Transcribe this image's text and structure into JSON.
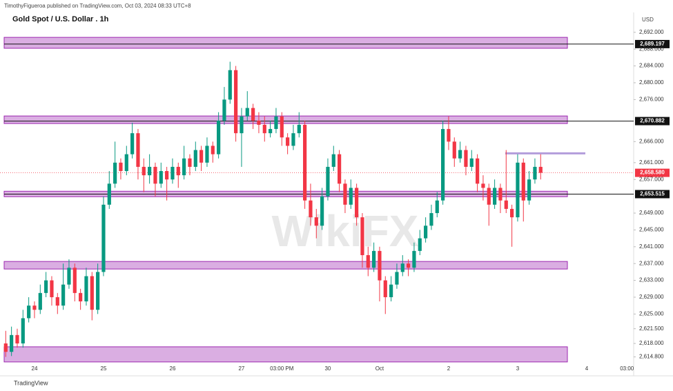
{
  "header": "TimothyFigueroa published on TradingView.com, Oct 03, 2024 08:33 UTC+8",
  "footer": "TradingView",
  "watermark": "WikiFX",
  "chart_data": {
    "type": "candlestick",
    "title": "Gold Spot / U.S. Dollar . 1h",
    "currency": "USD",
    "up_color": "#089981",
    "down_color": "#f23645",
    "zone_color": "#ce93d8",
    "ylim": [
      2613.25,
      2696.4
    ],
    "yticks": [
      {
        "value": 2692,
        "label": "2,692.000"
      },
      {
        "value": 2688,
        "label": "2,688.000"
      },
      {
        "value": 2684,
        "label": "2,684.000"
      },
      {
        "value": 2680,
        "label": "2,680.000"
      },
      {
        "value": 2676,
        "label": "2,676.000"
      },
      {
        "value": 2666,
        "label": "2,666.000"
      },
      {
        "value": 2661,
        "label": "2,661.000"
      },
      {
        "value": 2657,
        "label": "2,657.000"
      },
      {
        "value": 2649,
        "label": "2,649.000"
      },
      {
        "value": 2645,
        "label": "2,645.000"
      },
      {
        "value": 2641,
        "label": "2,641.000"
      },
      {
        "value": 2637,
        "label": "2,637.000"
      },
      {
        "value": 2633,
        "label": "2,633.000"
      },
      {
        "value": 2629,
        "label": "2,629.000"
      },
      {
        "value": 2625,
        "label": "2,625.000"
      },
      {
        "value": 2621.5,
        "label": "2,621.500"
      },
      {
        "value": 2618,
        "label": "2,618.000"
      },
      {
        "value": 2614.8,
        "label": "2,614.800"
      }
    ],
    "price_lines": [
      {
        "value": 2689.197,
        "label": "2,689.197"
      },
      {
        "value": 2670.882,
        "label": "2,670.882"
      },
      {
        "value": 2653.515,
        "label": "2,653.515"
      }
    ],
    "last_price": {
      "value": 2658.58,
      "label": "2,658.580"
    },
    "zones": [
      [
        2690.8,
        2688.2
      ],
      [
        2672.1,
        2670.3
      ],
      [
        2654.2,
        2652.9
      ],
      [
        2637.5,
        2635.7
      ],
      [
        2617.2,
        2613.6
      ]
    ],
    "resistance_line": 2663.2,
    "categories": [
      null,
      null,
      null,
      null,
      null,
      "24",
      null,
      null,
      null,
      null,
      null,
      null,
      null,
      null,
      null,
      null,
      null,
      "25",
      null,
      null,
      null,
      null,
      null,
      null,
      null,
      null,
      null,
      null,
      null,
      "26",
      null,
      null,
      null,
      null,
      null,
      null,
      null,
      null,
      null,
      null,
      null,
      "27",
      null,
      null,
      null,
      null,
      null,
      null,
      "03:00 PM",
      null,
      null,
      null,
      null,
      null,
      null,
      null,
      "30",
      null,
      null,
      null,
      null,
      null,
      null,
      null,
      null,
      "Oct",
      null,
      null,
      null,
      null,
      null,
      null,
      null,
      null,
      null,
      null,
      null,
      "2",
      null,
      null,
      null,
      null,
      null,
      null,
      null,
      null,
      null,
      null,
      null,
      "3",
      null,
      null,
      null,
      null,
      null,
      null,
      null,
      null,
      null,
      null,
      null,
      "4",
      null,
      null,
      null,
      null,
      null,
      null,
      "03:00",
      null
    ],
    "ohlc": [
      [
        2618,
        2621,
        2614.8,
        2616
      ],
      [
        2616,
        2622,
        2615,
        2620
      ],
      [
        2620,
        2621.5,
        2617,
        2618
      ],
      [
        2618,
        2626,
        2617,
        2624
      ],
      [
        2624,
        2629,
        2623,
        2627
      ],
      [
        2627,
        2628,
        2624,
        2626
      ],
      [
        2626,
        2632,
        2625,
        2630
      ],
      [
        2630,
        2635,
        2629,
        2633
      ],
      [
        2633,
        2634,
        2627,
        2629
      ],
      [
        2629,
        2630,
        2625,
        2627
      ],
      [
        2627,
        2637,
        2626,
        2632
      ],
      [
        2632,
        2638,
        2631,
        2636
      ],
      [
        2636,
        2637,
        2628,
        2630
      ],
      [
        2630,
        2631,
        2626,
        2628
      ],
      [
        2628,
        2636,
        2627,
        2634
      ],
      [
        2634,
        2635,
        2623.5,
        2626
      ],
      [
        2626,
        2637,
        2625,
        2635
      ],
      [
        2635,
        2653,
        2634,
        2651
      ],
      [
        2651,
        2659,
        2650,
        2656
      ],
      [
        2656,
        2666,
        2655,
        2661
      ],
      [
        2661,
        2662,
        2657,
        2659
      ],
      [
        2659,
        2665,
        2658,
        2663
      ],
      [
        2663,
        2670.5,
        2662,
        2668
      ],
      [
        2668,
        2669,
        2657,
        2660
      ],
      [
        2660,
        2662,
        2654,
        2658
      ],
      [
        2658,
        2663,
        2656,
        2660
      ],
      [
        2660,
        2661,
        2653,
        2656
      ],
      [
        2656,
        2661,
        2655,
        2659
      ],
      [
        2659,
        2660,
        2652,
        2657
      ],
      [
        2657,
        2662,
        2656,
        2660
      ],
      [
        2660,
        2661,
        2655,
        2658
      ],
      [
        2658,
        2665,
        2657,
        2662
      ],
      [
        2662,
        2663,
        2658,
        2660
      ],
      [
        2660,
        2666,
        2659,
        2664
      ],
      [
        2664,
        2665,
        2659,
        2661
      ],
      [
        2661,
        2667,
        2660,
        2665
      ],
      [
        2665,
        2666,
        2661,
        2663
      ],
      [
        2663,
        2673,
        2662,
        2671
      ],
      [
        2671,
        2679,
        2670,
        2676
      ],
      [
        2676,
        2685,
        2675,
        2683
      ],
      [
        2683,
        2684,
        2666,
        2668
      ],
      [
        2668,
        2674,
        2660,
        2672
      ],
      [
        2672,
        2678,
        2671,
        2674
      ],
      [
        2674,
        2675,
        2669,
        2671
      ],
      [
        2671,
        2673,
        2668,
        2670
      ],
      [
        2670,
        2672,
        2666,
        2668
      ],
      [
        2668,
        2671,
        2667,
        2669
      ],
      [
        2669,
        2674,
        2668,
        2672
      ],
      [
        2672,
        2673,
        2665,
        2667
      ],
      [
        2667,
        2668,
        2663,
        2665
      ],
      [
        2665,
        2670,
        2664,
        2668
      ],
      [
        2668,
        2673,
        2667,
        2670
      ],
      [
        2670,
        2671,
        2650,
        2652
      ],
      [
        2652,
        2656,
        2646,
        2648
      ],
      [
        2648,
        2650,
        2643,
        2646
      ],
      [
        2646,
        2655,
        2645,
        2653
      ],
      [
        2653,
        2662,
        2652,
        2660
      ],
      [
        2660,
        2665,
        2659,
        2663
      ],
      [
        2663,
        2664,
        2654,
        2656
      ],
      [
        2656,
        2657,
        2649,
        2651
      ],
      [
        2651,
        2657,
        2650,
        2655
      ],
      [
        2655,
        2656,
        2646,
        2648
      ],
      [
        2648,
        2649,
        2636,
        2639
      ],
      [
        2639,
        2641,
        2634,
        2636
      ],
      [
        2636,
        2642,
        2635,
        2640
      ],
      [
        2640,
        2641,
        2628,
        2633
      ],
      [
        2633,
        2634,
        2625,
        2629
      ],
      [
        2629,
        2634,
        2628,
        2632
      ],
      [
        2632,
        2637,
        2631,
        2635
      ],
      [
        2635,
        2639,
        2634,
        2637
      ],
      [
        2637,
        2638,
        2634,
        2636
      ],
      [
        2636,
        2642,
        2635,
        2640
      ],
      [
        2640,
        2645,
        2639,
        2643
      ],
      [
        2643,
        2648,
        2642,
        2646
      ],
      [
        2646,
        2651,
        2645,
        2649
      ],
      [
        2649,
        2654,
        2648,
        2652
      ],
      [
        2652,
        2671,
        2651,
        2669
      ],
      [
        2669,
        2672,
        2664,
        2666
      ],
      [
        2666,
        2667,
        2660,
        2662
      ],
      [
        2662,
        2666,
        2661,
        2664
      ],
      [
        2664,
        2665,
        2658,
        2660
      ],
      [
        2660,
        2664,
        2659,
        2662
      ],
      [
        2662,
        2663,
        2654,
        2656
      ],
      [
        2656,
        2658,
        2652,
        2655
      ],
      [
        2655,
        2656,
        2646,
        2651
      ],
      [
        2651,
        2657,
        2650,
        2655
      ],
      [
        2655,
        2656,
        2649,
        2652
      ],
      [
        2652,
        2664,
        2649,
        2650
      ],
      [
        2650,
        2651,
        2641,
        2648
      ],
      [
        2648,
        2663,
        2647,
        2661
      ],
      [
        2661,
        2662,
        2647,
        2652
      ],
      [
        2652,
        2659,
        2651,
        2657
      ],
      [
        2657,
        2662,
        2656,
        2660
      ],
      [
        2660,
        2663,
        2657,
        2658.58
      ],
      null,
      null,
      null,
      null,
      null,
      null,
      null,
      null,
      null,
      null,
      null,
      null,
      null,
      null,
      null,
      null
    ]
  }
}
